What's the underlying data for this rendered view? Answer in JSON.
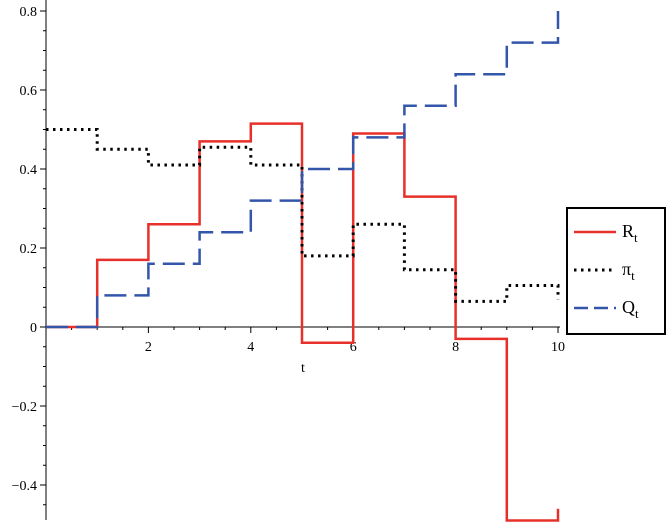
{
  "chart_data": {
    "type": "line",
    "step": true,
    "title": "",
    "xlabel": "t",
    "ylabel": "",
    "xlim": [
      0,
      10
    ],
    "ylim": [
      -0.5,
      0.8
    ],
    "x_ticks": [
      2,
      4,
      6,
      8,
      10
    ],
    "y_ticks": [
      -0.4,
      -0.2,
      0,
      0.2,
      0.4,
      0.6,
      0.8
    ],
    "x_tick_labels": [
      "2",
      "4",
      "6",
      "8",
      "10"
    ],
    "y_tick_labels": [
      "-0.4",
      "-0.2",
      "0",
      "0.2",
      "0.4",
      "0.6",
      "0.8"
    ],
    "grid": false,
    "legend_position": "right",
    "series": [
      {
        "id": "R",
        "name": "R",
        "name_sub": "t",
        "color": "#e8302a",
        "dash": "solid",
        "x": [
          0,
          1,
          2,
          3,
          4,
          5,
          6,
          7,
          8,
          9,
          10
        ],
        "values": [
          0,
          0.17,
          0.26,
          0.47,
          0.515,
          -0.04,
          0.49,
          0.33,
          -0.03,
          -0.49,
          -0.46
        ]
      },
      {
        "id": "pi",
        "name": "π",
        "name_sub": "t",
        "color": "#000000",
        "dash": "dotted",
        "x": [
          0,
          1,
          2,
          3,
          4,
          5,
          6,
          7,
          8,
          9,
          10
        ],
        "values": [
          0.5,
          0.45,
          0.41,
          0.455,
          0.41,
          0.18,
          0.26,
          0.145,
          0.065,
          0.105,
          0.07
        ]
      },
      {
        "id": "Q",
        "name": "Q",
        "name_sub": "t",
        "color": "#3355aa",
        "dash": "dashed",
        "x": [
          0,
          1,
          2,
          3,
          4,
          5,
          6,
          7,
          8,
          9,
          10
        ],
        "values": [
          0,
          0.08,
          0.16,
          0.24,
          0.32,
          0.4,
          0.48,
          0.56,
          0.64,
          0.72,
          0.8
        ]
      }
    ]
  }
}
